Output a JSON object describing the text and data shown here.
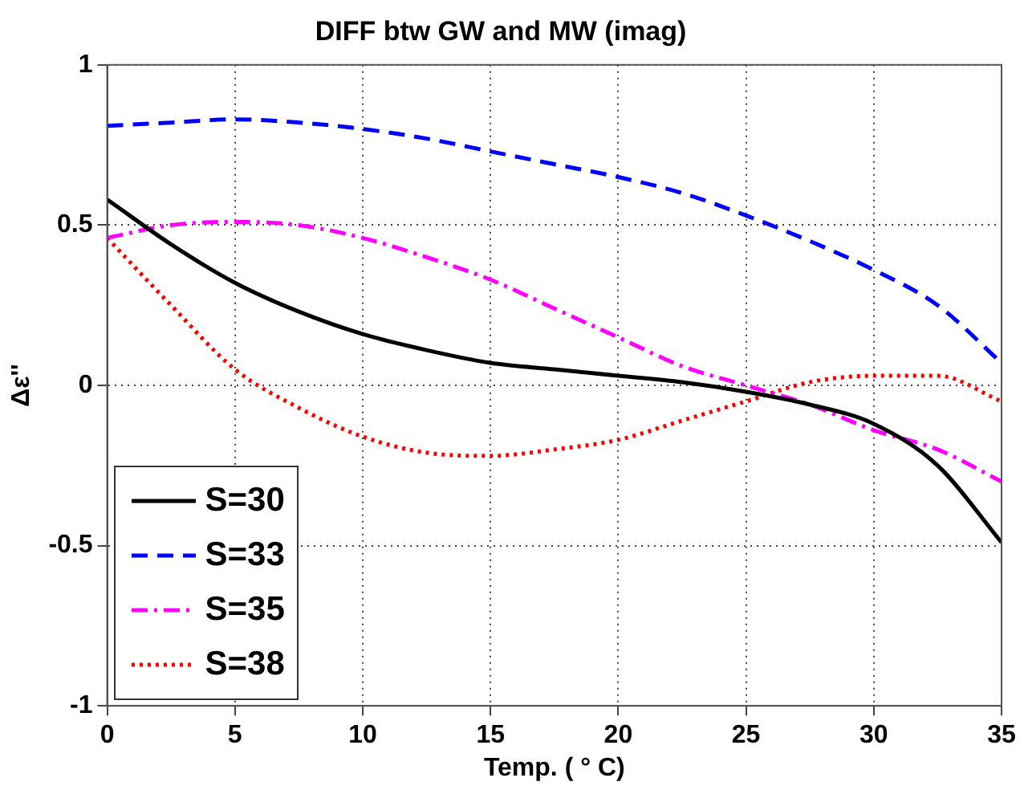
{
  "chart_data": {
    "type": "line",
    "title": "DIFF btw GW and MW (imag)",
    "xlabel": "Temp. ( ° C)",
    "ylabel": "Δε''",
    "x": [
      0,
      2.5,
      5,
      7.5,
      10,
      12.5,
      15,
      17.5,
      20,
      22.5,
      25,
      27.5,
      30,
      32.5,
      35
    ],
    "series": [
      {
        "name": "S=30",
        "color": "#000000",
        "line_style": "solid",
        "values": [
          0.58,
          0.44,
          0.32,
          0.23,
          0.16,
          0.11,
          0.07,
          0.05,
          0.03,
          0.01,
          -0.02,
          -0.06,
          -0.12,
          -0.25,
          -0.49
        ]
      },
      {
        "name": "S=33",
        "color": "#0000ff",
        "line_style": "dashed",
        "values": [
          0.81,
          0.82,
          0.83,
          0.82,
          0.8,
          0.77,
          0.73,
          0.69,
          0.65,
          0.6,
          0.53,
          0.45,
          0.36,
          0.25,
          0.07
        ]
      },
      {
        "name": "S=35",
        "color": "#ff00ff",
        "line_style": "dashdot",
        "values": [
          0.46,
          0.5,
          0.51,
          0.5,
          0.46,
          0.4,
          0.33,
          0.24,
          0.15,
          0.06,
          0.0,
          -0.06,
          -0.14,
          -0.2,
          -0.3
        ]
      },
      {
        "name": "S=38",
        "color": "#ff0000",
        "line_style": "dotted",
        "values": [
          0.46,
          0.25,
          0.05,
          -0.07,
          -0.16,
          -0.21,
          -0.22,
          -0.2,
          -0.17,
          -0.11,
          -0.05,
          0.01,
          0.03,
          0.03,
          -0.05
        ]
      }
    ],
    "xlim": [
      0,
      35
    ],
    "xticks": [
      0,
      5,
      10,
      15,
      20,
      25,
      30,
      35
    ],
    "ylim": [
      -1,
      1
    ],
    "yticks": [
      -1,
      -0.5,
      0,
      0.5,
      1
    ],
    "grid": true,
    "legend": "bottom left",
    "marker": "none"
  }
}
